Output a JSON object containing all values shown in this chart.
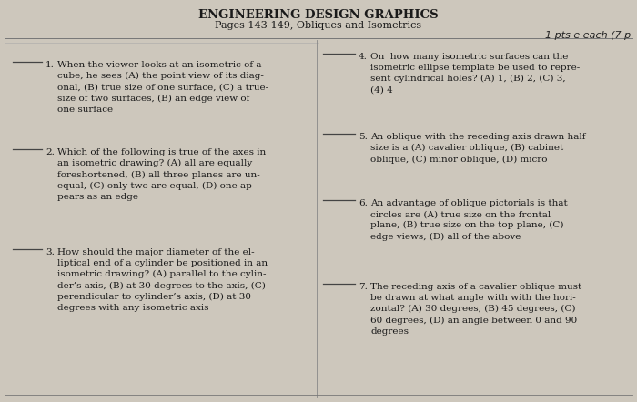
{
  "title": "ENGINEERING DESIGN GRAPHICS",
  "subtitle": "Pages 143-149, Obliques and Isometrics",
  "note": "1 pts e each (7 p",
  "bg_color": "#cdc7bc",
  "text_color": "#1a1a1a",
  "questions_left": [
    {
      "num": "1.",
      "text": "When the viewer looks at an isometric of a\ncube, he sees (A) the point view of its diag-\nonal, (B) true size of one surface, (C) a true-\nsize of two surfaces, (B) an edge view of\none surface"
    },
    {
      "num": "2.",
      "text": "Which of the following is true of the axes in\nan isometric drawing? (A) all are equally\nforeshortened, (B) all three planes are un-\nequal, (C) only two are equal, (D) one ap-\npears as an edge"
    },
    {
      "num": "3.",
      "text": "How should the major diameter of the el-\nliptical end of a cylinder be positioned in an\nisometric drawing? (A) parallel to the cylin-\nder’s axis, (B) at 30 degrees to the axis, (C)\nperendicular to cylinder’s axis, (D) at 30\ndegrees with any isometric axis"
    }
  ],
  "questions_right": [
    {
      "num": "4.",
      "text": "On  how many isometric surfaces can the\nisometric ellipse template be used to repre-\nsent cylindrical holes? (A) 1, (B) 2, (C) 3,\n(4) 4"
    },
    {
      "num": "5.",
      "text": "An oblique with the receding axis drawn half\nsize is a (A) cavalier oblique, (B) cabinet\noblique, (C) minor oblique, (D) micro"
    },
    {
      "num": "6.",
      "text": "An advantage of oblique pictorials is that\ncircles are (A) true size on the frontal\nplane, (B) true size on the top plane, (C)\nedge views, (D) all of the above"
    },
    {
      "num": "7.",
      "text": "The receding axis of a cavalier oblique must\nbe drawn at what angle with with the hori-\nzontal? (A) 30 degrees, (B) 45 degrees, (C)\n60 degrees, (D) an angle between 0 and 90\ndegrees"
    }
  ]
}
